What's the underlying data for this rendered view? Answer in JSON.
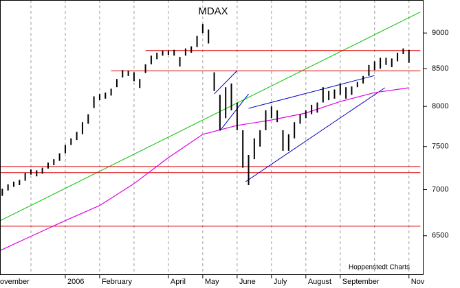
{
  "chart_data": {
    "type": "range-bar",
    "title": "MDAX",
    "source": "Hoppenstedt Charts",
    "log": true,
    "grid": true,
    "color": "#000000",
    "categories": [
      "ovember",
      null,
      null,
      null,
      null,
      null,
      null,
      null,
      null,
      null,
      null,
      null,
      "2006",
      null,
      null,
      null,
      null,
      null,
      "February",
      null,
      null,
      null,
      null,
      null,
      null,
      null,
      null,
      null,
      null,
      null,
      "April",
      null,
      null,
      null,
      null,
      null,
      "May",
      null,
      null,
      null,
      null,
      null,
      "June",
      null,
      null,
      null,
      null,
      null,
      "July",
      null,
      null,
      null,
      null,
      null,
      "August",
      null,
      null,
      null,
      null,
      null,
      "September",
      null,
      null,
      null,
      null,
      null,
      null,
      null,
      null,
      null,
      null,
      null,
      "Nov"
    ],
    "high": [
      7020,
      7010,
      7060,
      7090,
      7110,
      7190,
      7230,
      7220,
      7250,
      7310,
      7350,
      7420,
      7520,
      7600,
      7680,
      7800,
      7900,
      8130,
      8160,
      8180,
      8230,
      8360,
      8480,
      8470,
      8450,
      8360,
      8560,
      8680,
      8720,
      8750,
      8750,
      8760,
      8660,
      8780,
      8810,
      8960,
      9130,
      9050,
      8450,
      8150,
      8250,
      8300,
      8050,
      7700,
      7400,
      7600,
      7700,
      7950,
      8000,
      7950,
      7700,
      7650,
      7800,
      7900,
      7950,
      8020,
      8050,
      8250,
      8200,
      8220,
      8300,
      8250,
      8260,
      8320,
      8400,
      8550,
      8600,
      8650,
      8650,
      8640,
      8720,
      8780,
      8760
    ],
    "low": [
      6960,
      6930,
      6990,
      7030,
      7050,
      7100,
      7170,
      7150,
      7180,
      7240,
      7280,
      7330,
      7420,
      7520,
      7580,
      7650,
      7780,
      7980,
      8080,
      8100,
      8140,
      8250,
      8380,
      8400,
      8330,
      8240,
      8440,
      8560,
      8630,
      8680,
      8690,
      8680,
      8530,
      8680,
      8720,
      8800,
      9000,
      8850,
      8200,
      7700,
      7850,
      7950,
      7700,
      7250,
      7050,
      7350,
      7500,
      7700,
      7850,
      7800,
      7450,
      7450,
      7600,
      7780,
      7850,
      7900,
      7920,
      8050,
      8080,
      8100,
      8150,
      8100,
      8150,
      8250,
      8300,
      8400,
      8480,
      8500,
      8550,
      8520,
      8600,
      8700,
      8580
    ],
    "moving_average": {
      "color": "#e000e0",
      "x": [
        0,
        6,
        12,
        18,
        24,
        30,
        36,
        42,
        48,
        54,
        60,
        66,
        72
      ],
      "values": [
        6331,
        6494,
        6660,
        6823,
        7067,
        7368,
        7649,
        7759,
        7827,
        7915,
        8063,
        8179,
        8243
      ]
    },
    "lines": [
      {
        "color": "#00c000",
        "from": [
          0,
          6640
        ],
        "to": [
          74,
          9310
        ]
      },
      {
        "color": "#e00000",
        "from": [
          26,
          8750
        ],
        "to": [
          74,
          8750
        ]
      },
      {
        "color": "#e00000",
        "from": [
          20,
          8470
        ],
        "to": [
          74,
          8470
        ]
      },
      {
        "color": "#e00000",
        "from": [
          0,
          7264
        ],
        "to": [
          74,
          7264
        ]
      },
      {
        "color": "#e00000",
        "from": [
          0,
          7193
        ],
        "to": [
          74,
          7193
        ]
      },
      {
        "color": "#e00000",
        "from": [
          0,
          6600
        ],
        "to": [
          74,
          6600
        ]
      },
      {
        "color": "#0000c0",
        "from": [
          38,
          8161
        ],
        "to": [
          42,
          8473
        ]
      },
      {
        "color": "#0000c0",
        "from": [
          39,
          7693
        ],
        "to": [
          44,
          8161
        ]
      },
      {
        "color": "#0000c0",
        "from": [
          43.5,
          7090
        ],
        "to": [
          67.8,
          8243
        ]
      },
      {
        "color": "#0000c0",
        "from": [
          44,
          7975
        ],
        "to": [
          66,
          8406
        ]
      }
    ],
    "ylim": [
      6110,
      9490
    ],
    "yticks": [
      6500,
      7000,
      7500,
      8000,
      8500,
      9000
    ]
  }
}
